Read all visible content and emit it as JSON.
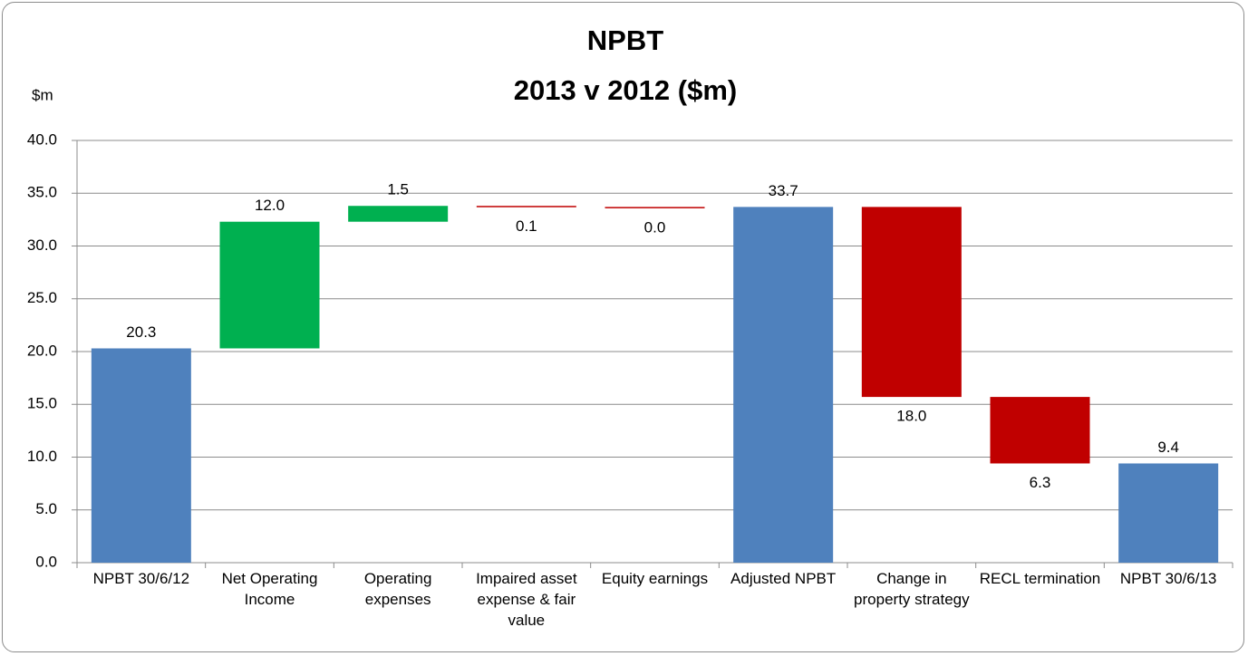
{
  "chart_data": {
    "type": "waterfall",
    "title_lines": [
      "NPBT",
      "2013 v 2012 ($m)"
    ],
    "y_axis_label": "$m",
    "categories": [
      "NPBT 30/6/12",
      "Net Operating Income",
      "Operating expenses",
      "Impaired asset expense & fair value",
      "Equity earnings",
      "Adjusted NPBT",
      "Change in property strategy",
      "RECL termination",
      "NPBT 30/6/13"
    ],
    "values": [
      20.3,
      12.0,
      1.5,
      0.1,
      0.0,
      33.7,
      18.0,
      6.3,
      9.4
    ],
    "value_labels": [
      "20.3",
      "12.0",
      "1.5",
      "0.1",
      "0.0",
      "33.7",
      "18.0",
      "6.3",
      "9.4"
    ],
    "measures": [
      "total",
      "increase",
      "increase",
      "decrease",
      "decrease",
      "total",
      "decrease",
      "decrease",
      "total"
    ],
    "colors": {
      "total": "#4f81bd",
      "increase": "#00b050",
      "decrease": "#c00000"
    },
    "ylim": [
      0,
      40
    ],
    "yticks": [
      {
        "value": 0,
        "label": "0.0"
      },
      {
        "value": 5,
        "label": "5.0"
      },
      {
        "value": 10,
        "label": "10.0"
      },
      {
        "value": 15,
        "label": "15.0"
      },
      {
        "value": 20,
        "label": "20.0"
      },
      {
        "value": 25,
        "label": "25.0"
      },
      {
        "value": 30,
        "label": "30.0"
      },
      {
        "value": 35,
        "label": "35.0"
      },
      {
        "value": 40,
        "label": "40.0"
      }
    ],
    "grid": true
  }
}
